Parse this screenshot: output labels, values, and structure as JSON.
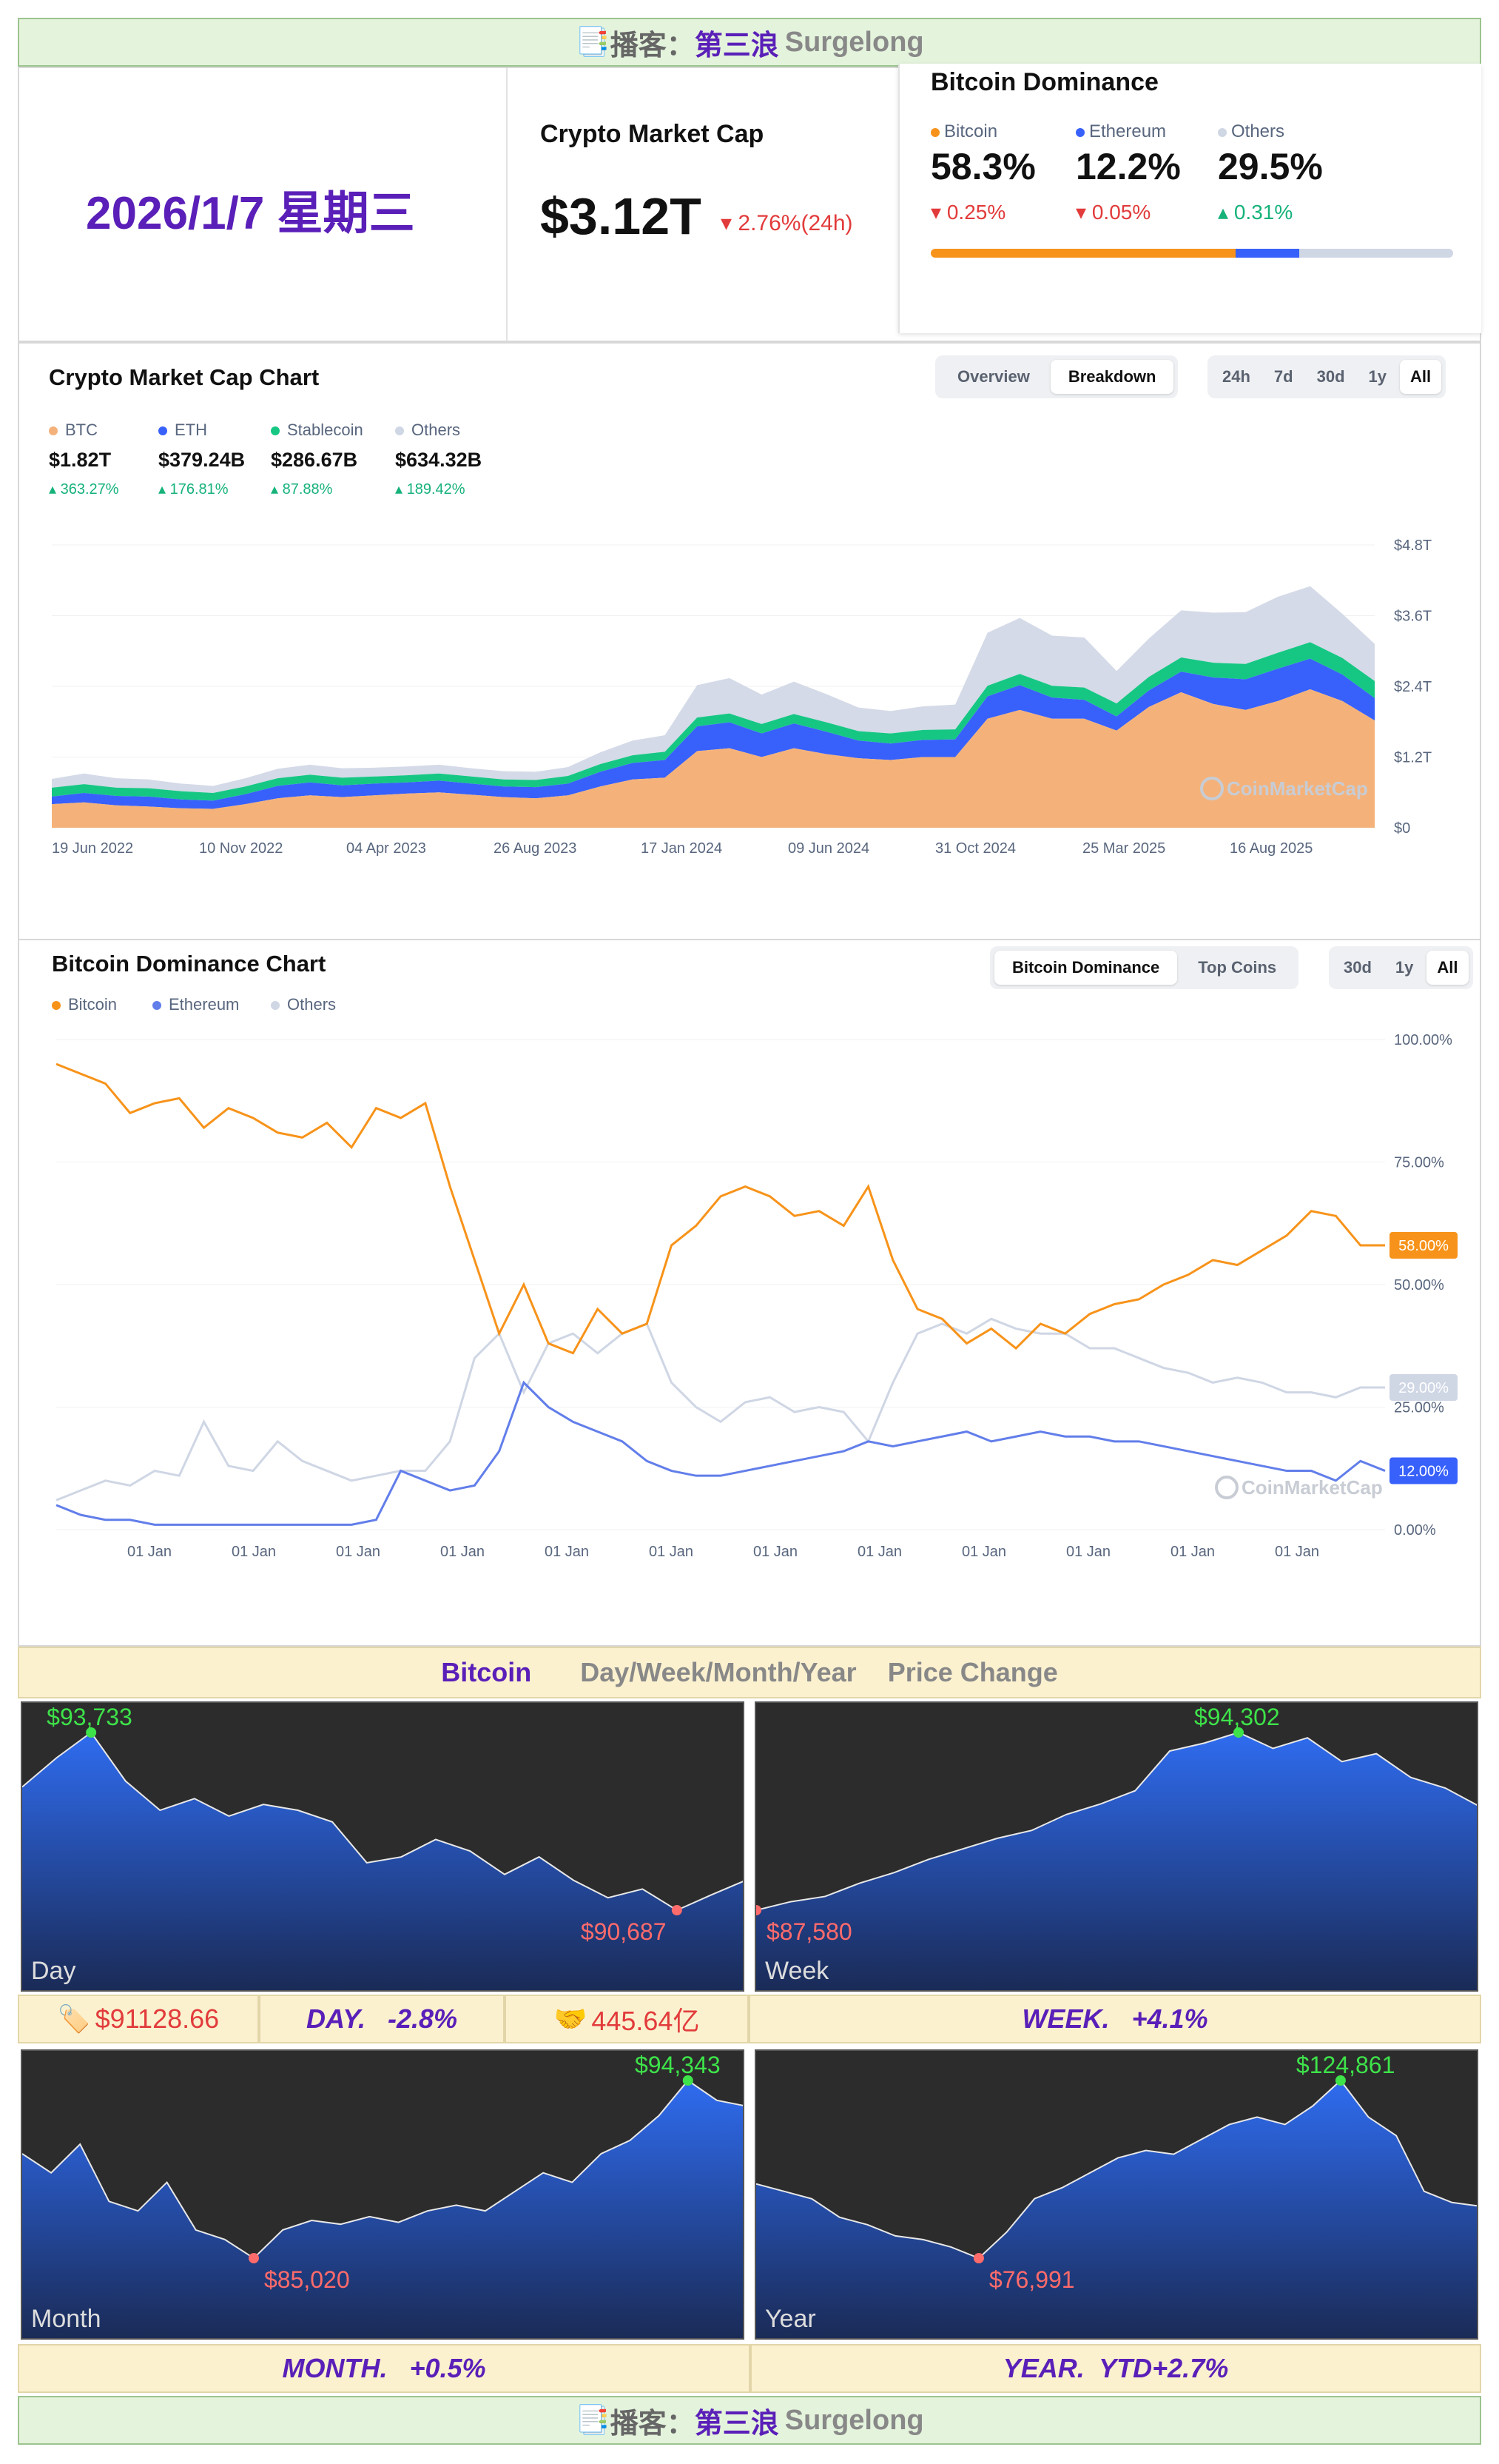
{
  "banner": {
    "icon": "📑",
    "prefix": "播客：",
    "name": "第三浪",
    "en": "Surgelong"
  },
  "date": "2026/1/7 星期三",
  "market_cap": {
    "title": "Crypto Market Cap",
    "value": "$3.12T",
    "change": "2.76%(24h)",
    "change_dir": "down"
  },
  "dominance": {
    "title": "Bitcoin Dominance",
    "items": [
      {
        "name": "Bitcoin",
        "value": "58.3%",
        "change": "0.25%",
        "dir": "down",
        "color": "#f7931a"
      },
      {
        "name": "Ethereum",
        "value": "12.2%",
        "change": "0.05%",
        "dir": "down",
        "color": "#3861fb"
      },
      {
        "name": "Others",
        "value": "29.5%",
        "change": "0.31%",
        "dir": "up",
        "color": "#cfd6e4"
      }
    ],
    "bar": [
      0.583,
      0.122,
      0.295
    ]
  },
  "cap_chart": {
    "title": "Crypto Market Cap Chart",
    "view_tabs": [
      "Overview",
      "Breakdown"
    ],
    "view_active": "Breakdown",
    "range_tabs": [
      "24h",
      "7d",
      "30d",
      "1y",
      "All"
    ],
    "range_active": "All",
    "legend": [
      {
        "name": "BTC",
        "value": "$1.82T",
        "change": "363.27%",
        "color": "#f4b27a"
      },
      {
        "name": "ETH",
        "value": "$379.24B",
        "change": "176.81%",
        "color": "#3861fb"
      },
      {
        "name": "Stablecoin",
        "value": "$286.67B",
        "change": "87.88%",
        "color": "#16c784"
      },
      {
        "name": "Others",
        "value": "$634.32B",
        "change": "189.42%",
        "color": "#cfd6e4"
      }
    ],
    "watermark": "CoinMarketCap"
  },
  "dom_chart": {
    "title": "Bitcoin Dominance Chart",
    "view_tabs": [
      "Bitcoin Dominance",
      "Top Coins"
    ],
    "view_active": "Bitcoin Dominance",
    "range_tabs": [
      "30d",
      "1y",
      "All"
    ],
    "range_active": "All",
    "legend": [
      {
        "name": "Bitcoin",
        "color": "#f7931a"
      },
      {
        "name": "Ethereum",
        "color": "#627eea"
      },
      {
        "name": "Others",
        "color": "#cfd6e4"
      }
    ],
    "badges": {
      "btc": "58.00%",
      "others": "29.00%",
      "eth": "12.00%"
    },
    "watermark": "CoinMarketCap"
  },
  "chart_data": [
    {
      "type": "area",
      "title": "Crypto Market Cap Chart",
      "stacked": true,
      "x_ticks": [
        "19 Jun 2022",
        "10 Nov 2022",
        "04 Apr 2023",
        "26 Aug 2023",
        "17 Jan 2024",
        "09 Jun 2024",
        "31 Oct 2024",
        "25 Mar 2025",
        "16 Aug 2025"
      ],
      "y_ticks": [
        "$0",
        "$1.2T",
        "$2.4T",
        "$3.6T",
        "$4.8T"
      ],
      "ylim": [
        0,
        4.8
      ],
      "series": [
        {
          "name": "BTC",
          "values": [
            0.4,
            0.43,
            0.38,
            0.36,
            0.33,
            0.32,
            0.4,
            0.5,
            0.55,
            0.52,
            0.55,
            0.58,
            0.6,
            0.56,
            0.52,
            0.5,
            0.55,
            0.7,
            0.82,
            0.85,
            1.3,
            1.35,
            1.2,
            1.35,
            1.25,
            1.18,
            1.15,
            1.2,
            1.2,
            1.85,
            2.0,
            1.85,
            1.85,
            1.65,
            2.05,
            2.3,
            2.1,
            2.0,
            2.15,
            2.35,
            2.15,
            1.82
          ]
        },
        {
          "name": "ETH",
          "values": [
            0.13,
            0.16,
            0.16,
            0.17,
            0.15,
            0.14,
            0.17,
            0.21,
            0.22,
            0.2,
            0.2,
            0.19,
            0.2,
            0.19,
            0.18,
            0.19,
            0.2,
            0.25,
            0.28,
            0.3,
            0.42,
            0.44,
            0.4,
            0.42,
            0.38,
            0.3,
            0.28,
            0.29,
            0.3,
            0.38,
            0.42,
            0.36,
            0.32,
            0.24,
            0.28,
            0.35,
            0.45,
            0.52,
            0.55,
            0.52,
            0.45,
            0.38
          ]
        },
        {
          "name": "Stablecoin",
          "values": [
            0.15,
            0.15,
            0.14,
            0.14,
            0.14,
            0.13,
            0.13,
            0.13,
            0.13,
            0.13,
            0.12,
            0.12,
            0.12,
            0.12,
            0.12,
            0.12,
            0.13,
            0.13,
            0.13,
            0.14,
            0.15,
            0.15,
            0.16,
            0.16,
            0.16,
            0.16,
            0.17,
            0.17,
            0.17,
            0.18,
            0.19,
            0.2,
            0.21,
            0.22,
            0.23,
            0.24,
            0.25,
            0.26,
            0.27,
            0.28,
            0.28,
            0.29
          ]
        },
        {
          "name": "Others",
          "values": [
            0.15,
            0.18,
            0.16,
            0.15,
            0.13,
            0.12,
            0.14,
            0.16,
            0.17,
            0.16,
            0.15,
            0.15,
            0.15,
            0.14,
            0.14,
            0.14,
            0.15,
            0.2,
            0.25,
            0.28,
            0.55,
            0.6,
            0.5,
            0.55,
            0.48,
            0.4,
            0.38,
            0.4,
            0.42,
            0.9,
            0.95,
            0.85,
            0.85,
            0.55,
            0.65,
            0.8,
            0.85,
            0.88,
            0.95,
            0.95,
            0.75,
            0.63
          ]
        }
      ]
    },
    {
      "type": "line",
      "title": "Bitcoin Dominance Chart",
      "x_ticks": [
        "01 Jan",
        "01 Jan",
        "01 Jan",
        "01 Jan",
        "01 Jan",
        "01 Jan",
        "01 Jan",
        "01 Jan",
        "01 Jan",
        "01 Jan",
        "01 Jan",
        "01 Jan"
      ],
      "y_ticks": [
        "0.00%",
        "25.00%",
        "50.00%",
        "75.00%",
        "100.00%"
      ],
      "ylim": [
        0,
        100
      ],
      "series": [
        {
          "name": "Bitcoin",
          "values": [
            95,
            93,
            91,
            85,
            87,
            88,
            82,
            86,
            84,
            81,
            80,
            83,
            78,
            86,
            84,
            87,
            70,
            55,
            40,
            50,
            38,
            36,
            45,
            40,
            42,
            58,
            62,
            68,
            70,
            68,
            64,
            65,
            62,
            70,
            55,
            45,
            43,
            38,
            41,
            37,
            42,
            40,
            44,
            46,
            47,
            50,
            52,
            55,
            54,
            57,
            60,
            65,
            64,
            58,
            58
          ]
        },
        {
          "name": "Ethereum",
          "values": [
            5,
            3,
            2,
            2,
            1,
            1,
            1,
            1,
            1,
            1,
            1,
            1,
            1,
            2,
            12,
            10,
            8,
            9,
            16,
            30,
            25,
            22,
            20,
            18,
            14,
            12,
            11,
            11,
            12,
            13,
            14,
            15,
            16,
            18,
            17,
            18,
            19,
            20,
            18,
            19,
            20,
            19,
            19,
            18,
            18,
            17,
            16,
            15,
            14,
            13,
            12,
            12,
            10,
            14,
            12
          ]
        },
        {
          "name": "Others",
          "values": [
            6,
            8,
            10,
            9,
            12,
            11,
            22,
            13,
            12,
            18,
            14,
            12,
            10,
            11,
            12,
            12,
            18,
            35,
            40,
            28,
            38,
            40,
            36,
            40,
            42,
            30,
            25,
            22,
            26,
            27,
            24,
            25,
            24,
            18,
            30,
            40,
            42,
            40,
            43,
            41,
            40,
            40,
            37,
            37,
            35,
            33,
            32,
            30,
            31,
            30,
            28,
            28,
            27,
            29,
            29
          ]
        }
      ]
    },
    {
      "type": "area",
      "title": "Day",
      "values": [
        92800,
        93300,
        93733,
        92900,
        92400,
        92600,
        92300,
        92500,
        92400,
        92200,
        91500,
        91600,
        91900,
        91700,
        91300,
        91600,
        91200,
        90900,
        91050,
        90687,
        90950,
        91200
      ],
      "annotations": {
        "high": "$93,733",
        "low": "$90,687"
      }
    },
    {
      "type": "area",
      "title": "Week",
      "values": [
        87580,
        87900,
        88100,
        88600,
        89000,
        89500,
        89900,
        90300,
        90600,
        91200,
        91600,
        92100,
        93600,
        93900,
        94302,
        93700,
        94100,
        93200,
        93500,
        92600,
        92200,
        91500
      ],
      "annotations": {
        "high": "$94,302",
        "low": "$87,580"
      }
    },
    {
      "type": "area",
      "title": "Month",
      "values": [
        90500,
        89500,
        91000,
        88000,
        87500,
        89000,
        86500,
        86000,
        85020,
        86500,
        87000,
        86800,
        87200,
        86900,
        87500,
        87800,
        87500,
        88500,
        89500,
        89000,
        90500,
        91200,
        92500,
        94343,
        93300,
        93000
      ],
      "annotations": {
        "high": "$94,343",
        "low": "$85,020"
      }
    },
    {
      "type": "area",
      "title": "Year",
      "values": [
        97000,
        95000,
        93000,
        88000,
        86000,
        83000,
        82000,
        80000,
        76991,
        84000,
        93000,
        96000,
        100000,
        104000,
        106000,
        105000,
        109000,
        113000,
        115000,
        113000,
        118000,
        124861,
        115000,
        110000,
        95000,
        92000,
        91000
      ],
      "annotations": {
        "high": "$124,861",
        "low": "$76,991"
      }
    }
  ],
  "price_header": {
    "coin": "Bitcoin",
    "period": "Day/Week/Month/Year",
    "label": "Price Change"
  },
  "price_row1": {
    "price_icon": "🏷️",
    "price": "$91128.66",
    "day": "DAY.   -2.8%",
    "vol_icon": "🤝",
    "volume": "445.64亿",
    "week": "WEEK.   +4.1%"
  },
  "price_row2": {
    "month": "MONTH.   +0.5%",
    "year": "YEAR.  YTD+2.7%"
  },
  "footer": {
    "icon": "📑",
    "prefix": "播客：",
    "name": "第三浪",
    "en": "Surgelong"
  }
}
